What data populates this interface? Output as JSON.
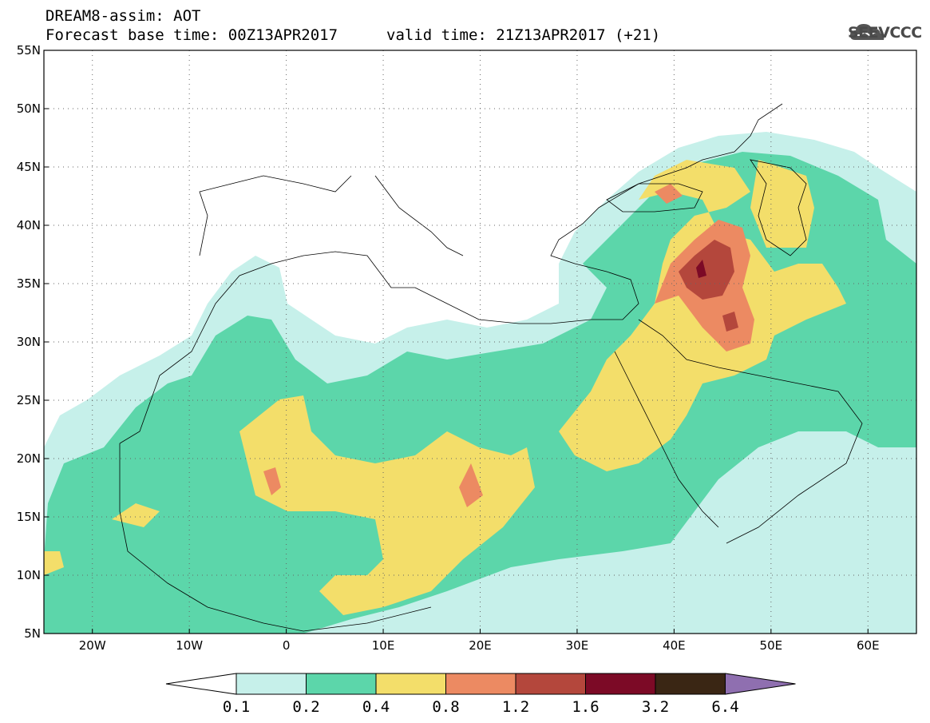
{
  "header": {
    "line1": "DREAM8-assim: AOT",
    "line2a": "Forecast base time: 00Z13APR2017",
    "line2b": "valid time: 21Z13APR2017 (+21)",
    "logo_text": "SEEVCCC"
  },
  "map": {
    "lon_range": [
      -25,
      65
    ],
    "lat_range": [
      5,
      55
    ],
    "y_ticks": [
      "55N",
      "50N",
      "45N",
      "40N",
      "35N",
      "30N",
      "25N",
      "20N",
      "15N",
      "10N",
      "5N"
    ],
    "x_ticks": [
      "20W",
      "10W",
      "0",
      "10E",
      "20E",
      "30E",
      "40E",
      "50E",
      "60E"
    ],
    "gridlines": "dotted"
  },
  "colorbar": {
    "labels": [
      "0.1",
      "0.2",
      "0.4",
      "0.8",
      "1.2",
      "1.6",
      "3.2",
      "6.4"
    ],
    "colors": [
      "#ffffff",
      "#c6f0ea",
      "#5cd6aa",
      "#f3de6a",
      "#ec8a62",
      "#b4473c",
      "#7c0a26",
      "#3a2614",
      "#8f6fb0"
    ]
  }
}
